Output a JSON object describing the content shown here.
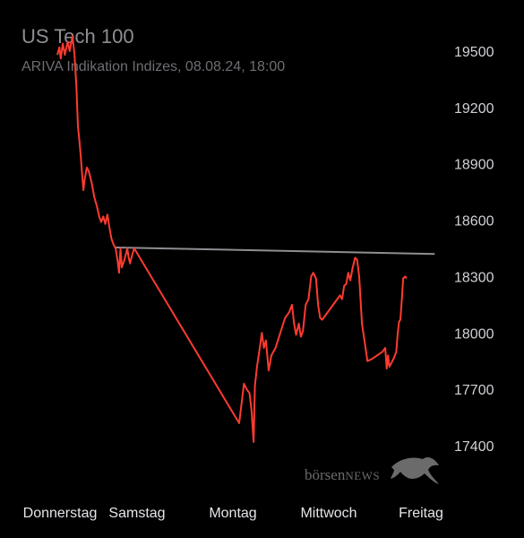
{
  "header": {
    "title": "US Tech 100",
    "subtitle": "ARIVA Indikation Indizes, 08.08.24, 18:00"
  },
  "watermark": {
    "text_main": "börsen",
    "text_news": "NEWS",
    "icon": "bull-icon"
  },
  "colors": {
    "line": "#ff3b30",
    "reference": "#8e8e93",
    "background": "#000000"
  },
  "chart_data": {
    "type": "line",
    "title": "US Tech 100",
    "subtitle": "ARIVA Indikation Indizes, 08.08.24, 18:00",
    "xlabel": "",
    "ylabel": "",
    "x_tick_labels": [
      "Donnerstag",
      "Samstag",
      "Montag",
      "Mittwoch",
      "Freitag"
    ],
    "y_ticks": [
      19500,
      19200,
      18900,
      18600,
      18300,
      18000,
      17700,
      17400
    ],
    "ylim": [
      17400,
      19600
    ],
    "y_axis_position": "right",
    "grid": false,
    "legend": "none",
    "reference_line": {
      "start_day": 0.85,
      "end_day": 5.5,
      "start_value": 18455,
      "end_value": 18420
    },
    "series": [
      {
        "points": [
          [
            0.0,
            19480
          ],
          [
            0.03,
            19520
          ],
          [
            0.05,
            19460
          ],
          [
            0.08,
            19540
          ],
          [
            0.11,
            19480
          ],
          [
            0.15,
            19550
          ],
          [
            0.18,
            19500
          ],
          [
            0.22,
            19580
          ],
          [
            0.25,
            19480
          ],
          [
            0.28,
            19300
          ],
          [
            0.3,
            19100
          ],
          [
            0.32,
            19030
          ],
          [
            0.34,
            18950
          ],
          [
            0.36,
            18850
          ],
          [
            0.38,
            18760
          ],
          [
            0.4,
            18820
          ],
          [
            0.43,
            18880
          ],
          [
            0.46,
            18860
          ],
          [
            0.5,
            18800
          ],
          [
            0.54,
            18720
          ],
          [
            0.58,
            18670
          ],
          [
            0.61,
            18620
          ],
          [
            0.64,
            18590
          ],
          [
            0.67,
            18620
          ],
          [
            0.7,
            18580
          ],
          [
            0.73,
            18630
          ],
          [
            0.76,
            18560
          ],
          [
            0.79,
            18500
          ],
          [
            0.82,
            18470
          ],
          [
            0.85,
            18450
          ],
          [
            0.88,
            18380
          ],
          [
            0.9,
            18320
          ],
          [
            0.92,
            18450
          ],
          [
            0.94,
            18350
          ],
          [
            0.97,
            18380
          ],
          [
            1.0,
            18420
          ],
          [
            1.02,
            18450
          ],
          [
            1.04,
            18400
          ],
          [
            1.06,
            18370
          ],
          [
            1.08,
            18400
          ],
          [
            1.12,
            18450
          ],
          [
            2.65,
            17520
          ],
          [
            2.72,
            17730
          ],
          [
            2.76,
            17700
          ],
          [
            2.8,
            17680
          ],
          [
            2.83,
            17590
          ],
          [
            2.86,
            17420
          ],
          [
            2.88,
            17720
          ],
          [
            2.91,
            17820
          ],
          [
            2.95,
            17920
          ],
          [
            2.98,
            18000
          ],
          [
            3.01,
            17920
          ],
          [
            3.04,
            17960
          ],
          [
            3.08,
            17800
          ],
          [
            3.12,
            17880
          ],
          [
            3.18,
            17920
          ],
          [
            3.25,
            18000
          ],
          [
            3.32,
            18080
          ],
          [
            3.38,
            18110
          ],
          [
            3.42,
            18150
          ],
          [
            3.45,
            18050
          ],
          [
            3.48,
            17990
          ],
          [
            3.52,
            18050
          ],
          [
            3.55,
            17980
          ],
          [
            3.58,
            18010
          ],
          [
            3.62,
            18150
          ],
          [
            3.66,
            18180
          ],
          [
            3.7,
            18300
          ],
          [
            3.73,
            18320
          ],
          [
            3.77,
            18290
          ],
          [
            3.8,
            18150
          ],
          [
            3.83,
            18080
          ],
          [
            3.86,
            18070
          ],
          [
            4.12,
            18200
          ],
          [
            4.15,
            18180
          ],
          [
            4.18,
            18250
          ],
          [
            4.21,
            18260
          ],
          [
            4.24,
            18320
          ],
          [
            4.27,
            18280
          ],
          [
            4.3,
            18340
          ],
          [
            4.34,
            18400
          ],
          [
            4.37,
            18390
          ],
          [
            4.4,
            18300
          ],
          [
            4.44,
            18050
          ],
          [
            4.48,
            17950
          ],
          [
            4.52,
            17850
          ],
          [
            4.58,
            17860
          ],
          [
            4.66,
            17880
          ],
          [
            4.74,
            17900
          ],
          [
            4.78,
            17920
          ],
          [
            4.8,
            17810
          ],
          [
            4.82,
            17880
          ],
          [
            4.84,
            17820
          ],
          [
            4.87,
            17840
          ],
          [
            4.91,
            17870
          ],
          [
            4.94,
            17900
          ],
          [
            4.96,
            17990
          ],
          [
            4.98,
            18060
          ],
          [
            5.0,
            18070
          ],
          [
            5.02,
            18170
          ],
          [
            5.04,
            18290
          ],
          [
            5.07,
            18300
          ],
          [
            5.09,
            18290
          ]
        ]
      }
    ]
  }
}
